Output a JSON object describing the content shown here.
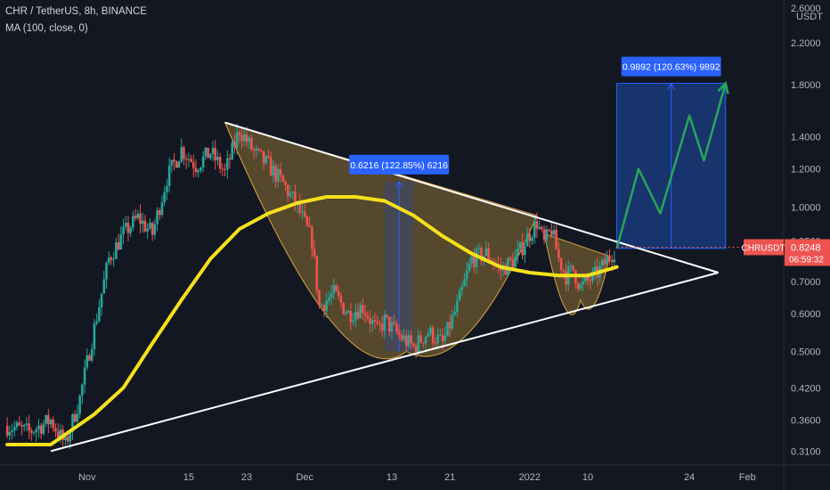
{
  "header": {
    "symbol_line": "CHR / TetherUS, 8h, BINANCE",
    "indicator_line": "MA (100, close, 0)"
  },
  "currency_label": "USDT",
  "colors": {
    "background": "#131722",
    "candle_up": "#26a69a",
    "candle_down": "#ef5350",
    "ma": "#f5e11b",
    "pattern_fill": "#a8843a",
    "range_box": "#1a3a7a",
    "range_box_border": "#2962ff",
    "projection": "#26a65b",
    "trendline": "#ffffff",
    "price_tag": "#ef5350",
    "measure_label": "#2962ff"
  },
  "chart_data": {
    "type": "candlestick",
    "symbol": "CHR / TetherUS",
    "interval": "8h",
    "exchange": "BINANCE",
    "scale": "log",
    "ylim": [
      0.29,
      2.7
    ],
    "y_ticks": [
      {
        "value": 2.6,
        "label": "2.6000"
      },
      {
        "value": 2.2,
        "label": "2.2000"
      },
      {
        "value": 1.8,
        "label": "1.8000"
      },
      {
        "value": 1.4,
        "label": "1.4000"
      },
      {
        "value": 1.2,
        "label": "1.2000"
      },
      {
        "value": 1.0,
        "label": "1.0000"
      },
      {
        "value": 0.85,
        "label": "0.8500"
      },
      {
        "value": 0.7,
        "label": "0.7000"
      },
      {
        "value": 0.6,
        "label": "0.6000"
      },
      {
        "value": 0.5,
        "label": "0.5000"
      },
      {
        "value": 0.42,
        "label": "0.4200"
      },
      {
        "value": 0.36,
        "label": "0.3600"
      },
      {
        "value": 0.31,
        "label": "0.3100"
      }
    ],
    "x_ticks": [
      {
        "day": 1,
        "label": "Nov"
      },
      {
        "day": 15,
        "label": "15"
      },
      {
        "day": 23,
        "label": "23"
      },
      {
        "day": 31,
        "label": "Dec"
      },
      {
        "day": 43,
        "label": "13"
      },
      {
        "day": 51,
        "label": "21"
      },
      {
        "day": 62,
        "label": "2022"
      },
      {
        "day": 70,
        "label": "10"
      },
      {
        "day": 84,
        "label": "24"
      },
      {
        "day": 92,
        "label": "Feb"
      }
    ],
    "price_path": [
      [
        -10,
        0.35
      ],
      [
        -7,
        0.34
      ],
      [
        -4,
        0.36
      ],
      [
        -2,
        0.32
      ],
      [
        0,
        0.4
      ],
      [
        2,
        0.56
      ],
      [
        4,
        0.78
      ],
      [
        6,
        0.88
      ],
      [
        8,
        0.95
      ],
      [
        10,
        0.88
      ],
      [
        12,
        1.15
      ],
      [
        14,
        1.32
      ],
      [
        16,
        1.22
      ],
      [
        18,
        1.3
      ],
      [
        20,
        1.18
      ],
      [
        22,
        1.45
      ],
      [
        24,
        1.3
      ],
      [
        26,
        1.22
      ],
      [
        28,
        1.12
      ],
      [
        30,
        1.0
      ],
      [
        32,
        0.85
      ],
      [
        33,
        0.62
      ],
      [
        35,
        0.66
      ],
      [
        37,
        0.6
      ],
      [
        39,
        0.62
      ],
      [
        41,
        0.55
      ],
      [
        42,
        0.58
      ],
      [
        44,
        0.54
      ],
      [
        46,
        0.51
      ],
      [
        48,
        0.55
      ],
      [
        50,
        0.52
      ],
      [
        52,
        0.62
      ],
      [
        54,
        0.78
      ],
      [
        56,
        0.8
      ],
      [
        58,
        0.74
      ],
      [
        60,
        0.78
      ],
      [
        62,
        0.88
      ],
      [
        63,
        0.93
      ],
      [
        64,
        0.84
      ],
      [
        65,
        0.9
      ],
      [
        66,
        0.78
      ],
      [
        67,
        0.72
      ],
      [
        68,
        0.74
      ],
      [
        69,
        0.68
      ],
      [
        70,
        0.7
      ],
      [
        71,
        0.72
      ],
      [
        72,
        0.75
      ],
      [
        73,
        0.79
      ],
      [
        74,
        0.8248
      ]
    ],
    "ma100": [
      [
        -10,
        0.32
      ],
      [
        -4,
        0.32
      ],
      [
        2,
        0.37
      ],
      [
        6,
        0.42
      ],
      [
        10,
        0.52
      ],
      [
        14,
        0.64
      ],
      [
        18,
        0.78
      ],
      [
        22,
        0.9
      ],
      [
        26,
        0.97
      ],
      [
        30,
        1.02
      ],
      [
        34,
        1.05
      ],
      [
        38,
        1.05
      ],
      [
        42,
        1.03
      ],
      [
        46,
        0.96
      ],
      [
        50,
        0.87
      ],
      [
        54,
        0.8
      ],
      [
        58,
        0.75
      ],
      [
        62,
        0.73
      ],
      [
        66,
        0.72
      ],
      [
        70,
        0.72
      ],
      [
        74,
        0.75
      ]
    ],
    "trendlines": [
      {
        "name": "upper",
        "from": [
          20,
          1.5
        ],
        "to": [
          88,
          0.73
        ]
      },
      {
        "name": "lower",
        "from": [
          -4,
          0.31
        ],
        "to": [
          88,
          0.73
        ]
      }
    ],
    "patterns": [
      {
        "name": "cup",
        "from": [
          20,
          1.5
        ],
        "bottom": [
          45,
          0.5
        ],
        "to": [
          63,
          0.96
        ]
      },
      {
        "name": "handle",
        "from": [
          64,
          0.88
        ],
        "bottom": [
          69,
          0.64
        ],
        "to": [
          73,
          0.79
        ]
      }
    ],
    "measurements": [
      {
        "from_day": 42,
        "to_day": 46,
        "low": 0.5,
        "high": 1.13,
        "label": "0.6216 (122.85%) 6216"
      },
      {
        "from_day": 74,
        "to_day": 89,
        "low": 0.82,
        "high": 1.81,
        "label": "0.9892 (120.63%) 9892"
      }
    ],
    "projection": [
      [
        74,
        0.82
      ],
      [
        77,
        1.2
      ],
      [
        80,
        0.97
      ],
      [
        84,
        1.55
      ],
      [
        86,
        1.25
      ],
      [
        89,
        1.81
      ]
    ],
    "last_price": {
      "symbol": "CHRUSDT",
      "price": "0.8248",
      "countdown": "06:59:32"
    }
  }
}
